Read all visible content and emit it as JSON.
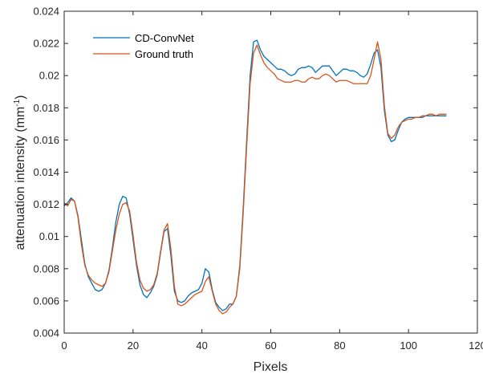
{
  "chart_data": {
    "type": "line",
    "xlabel": "Pixels",
    "ylabel_main": "attenuation intensity  (mm",
    "ylabel_exp": "-1",
    "ylabel_close": ")",
    "xlim": [
      0,
      120
    ],
    "ylim": [
      0.004,
      0.024
    ],
    "xticks": [
      0,
      20,
      40,
      60,
      80,
      100,
      120
    ],
    "xtick_labels": [
      "0",
      "20",
      "40",
      "60",
      "80",
      "100",
      "120"
    ],
    "yticks": [
      0.004,
      0.006,
      0.008,
      0.01,
      0.012,
      0.014,
      0.016,
      0.018,
      0.02,
      0.022,
      0.024
    ],
    "ytick_labels": [
      "0.004",
      "0.006",
      "0.008",
      "0.01",
      "0.012",
      "0.014",
      "0.016",
      "0.018",
      "0.02",
      "0.022",
      "0.024"
    ],
    "grid": false,
    "legend_position": "top-left",
    "x": [
      0,
      1,
      2,
      3,
      4,
      5,
      6,
      7,
      8,
      9,
      10,
      11,
      12,
      13,
      14,
      15,
      16,
      17,
      18,
      19,
      20,
      21,
      22,
      23,
      24,
      25,
      26,
      27,
      28,
      29,
      30,
      31,
      32,
      33,
      34,
      35,
      36,
      37,
      38,
      39,
      40,
      41,
      42,
      43,
      44,
      45,
      46,
      47,
      48,
      49,
      50,
      51,
      52,
      53,
      54,
      55,
      56,
      57,
      58,
      59,
      60,
      61,
      62,
      63,
      64,
      65,
      66,
      67,
      68,
      69,
      70,
      71,
      72,
      73,
      74,
      75,
      76,
      77,
      78,
      79,
      80,
      81,
      82,
      83,
      84,
      85,
      86,
      87,
      88,
      89,
      90,
      91,
      92,
      93,
      94,
      95,
      96,
      97,
      98,
      99,
      100,
      101,
      102,
      103,
      104,
      105,
      106,
      107,
      108,
      109,
      110,
      111
    ],
    "series": [
      {
        "name": "CD-ConvNet",
        "color": "#0072BD",
        "values": [
          0.0119,
          0.0121,
          0.0124,
          0.0122,
          0.0113,
          0.0098,
          0.0083,
          0.0075,
          0.0071,
          0.0067,
          0.0066,
          0.0067,
          0.0071,
          0.0079,
          0.0093,
          0.0109,
          0.012,
          0.0125,
          0.0124,
          0.0114,
          0.0098,
          0.0082,
          0.007,
          0.0064,
          0.0062,
          0.0065,
          0.0069,
          0.0076,
          0.009,
          0.0103,
          0.0105,
          0.0088,
          0.0066,
          0.006,
          0.0059,
          0.006,
          0.0063,
          0.0065,
          0.0066,
          0.0067,
          0.0071,
          0.008,
          0.0078,
          0.0067,
          0.0059,
          0.0056,
          0.0054,
          0.0055,
          0.0058,
          0.0058,
          0.0063,
          0.0082,
          0.0118,
          0.016,
          0.02,
          0.0221,
          0.0222,
          0.0216,
          0.0212,
          0.021,
          0.0208,
          0.0206,
          0.0204,
          0.0204,
          0.0203,
          0.0201,
          0.02,
          0.0201,
          0.0204,
          0.0205,
          0.0205,
          0.0206,
          0.0205,
          0.0202,
          0.0204,
          0.0206,
          0.0206,
          0.0206,
          0.0203,
          0.02,
          0.0202,
          0.0204,
          0.0204,
          0.0203,
          0.0203,
          0.0202,
          0.02,
          0.0199,
          0.0201,
          0.0207,
          0.0214,
          0.0216,
          0.0205,
          0.0178,
          0.0163,
          0.0159,
          0.016,
          0.0166,
          0.0171,
          0.0173,
          0.0174,
          0.0174,
          0.0174,
          0.0174,
          0.0174,
          0.0175,
          0.0175,
          0.0175,
          0.0175,
          0.0175,
          0.0175,
          0.0175
        ]
      },
      {
        "name": "Ground truth",
        "color": "#D95319",
        "values": [
          0.0121,
          0.0119,
          0.0123,
          0.0122,
          0.0112,
          0.0095,
          0.0082,
          0.0076,
          0.0073,
          0.0071,
          0.007,
          0.0069,
          0.0071,
          0.0078,
          0.0091,
          0.0104,
          0.0114,
          0.012,
          0.0121,
          0.0116,
          0.0101,
          0.0084,
          0.0073,
          0.0068,
          0.0066,
          0.0067,
          0.007,
          0.0077,
          0.0091,
          0.0104,
          0.0108,
          0.0092,
          0.0069,
          0.0058,
          0.0057,
          0.0058,
          0.006,
          0.0062,
          0.0064,
          0.0065,
          0.0066,
          0.0072,
          0.0075,
          0.0066,
          0.0058,
          0.0054,
          0.0052,
          0.0053,
          0.0056,
          0.0058,
          0.0063,
          0.008,
          0.0115,
          0.0156,
          0.0195,
          0.0214,
          0.0219,
          0.0213,
          0.0208,
          0.0205,
          0.0203,
          0.0201,
          0.0198,
          0.0197,
          0.0196,
          0.0196,
          0.0196,
          0.0197,
          0.0197,
          0.0196,
          0.0196,
          0.0198,
          0.0199,
          0.0198,
          0.0198,
          0.02,
          0.0201,
          0.02,
          0.0198,
          0.0196,
          0.0197,
          0.0197,
          0.0197,
          0.0196,
          0.0195,
          0.0195,
          0.0195,
          0.0195,
          0.0195,
          0.02,
          0.021,
          0.0221,
          0.021,
          0.0181,
          0.0164,
          0.0161,
          0.0163,
          0.0168,
          0.0171,
          0.0172,
          0.0173,
          0.0173,
          0.0174,
          0.0174,
          0.0175,
          0.0175,
          0.0176,
          0.0176,
          0.0175,
          0.0176,
          0.0176,
          0.0176
        ]
      }
    ]
  }
}
